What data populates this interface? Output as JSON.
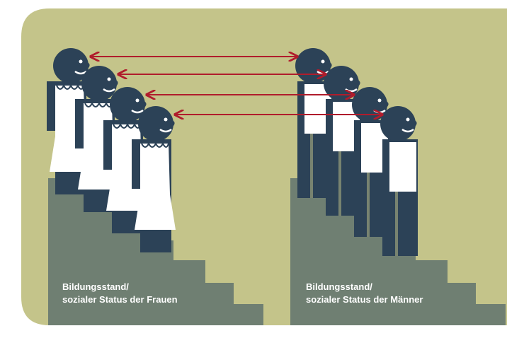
{
  "women": {
    "label": [
      "Bildungsstand/",
      "sozialer Status der Frauen"
    ]
  },
  "men": {
    "label": [
      "Bildungsstand/",
      "sozialer Status der Männer"
    ]
  }
}
